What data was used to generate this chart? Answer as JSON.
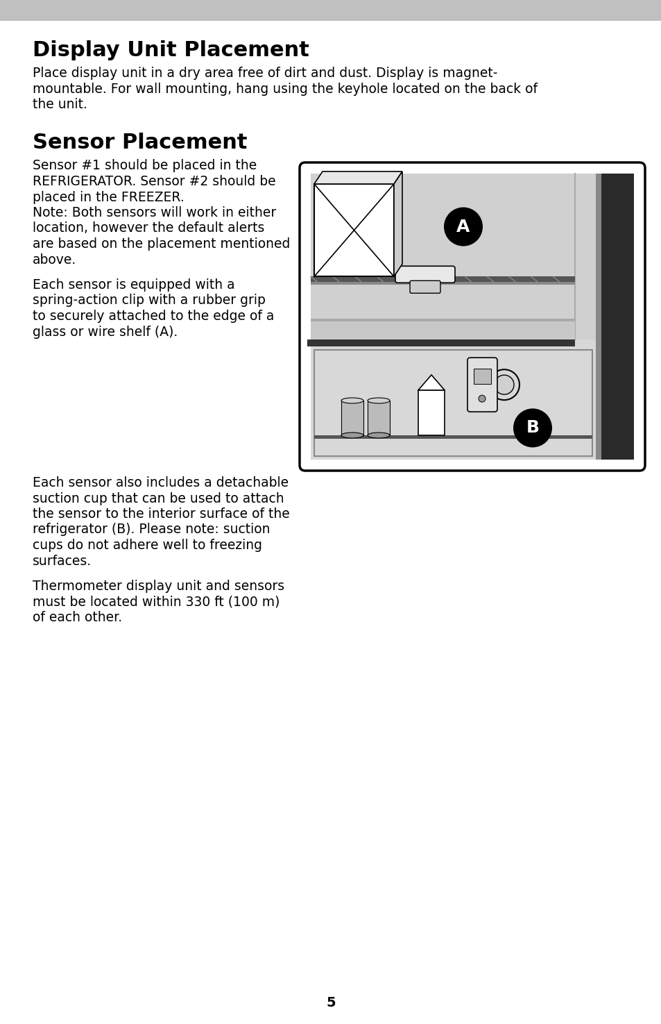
{
  "bg_color": "#ffffff",
  "header_bar_color": "#c0c0c0",
  "page_number": "5",
  "title1": "Display Unit Placement",
  "title2": "Sensor Placement",
  "body1_line1": "Place display unit in a dry area free of dirt and dust. Display is magnet-",
  "body1_line2": "mountable. For wall mounting, hang using the keyhole located on the back of",
  "body1_line3": "the unit.",
  "para1_line1": "Sensor #1 should be placed in the",
  "para1_line2": "REFRIGERATOR. Sensor #2 should be",
  "para1_line3": "placed in the FREEZER.",
  "para1_line4": "Note: Both sensors will work in either",
  "para1_line5": "location, however the default alerts",
  "para1_line6": "are based on the placement mentioned",
  "para1_line7": "above.",
  "para2_line1": "Each sensor is equipped with a",
  "para2_line2": "spring-action clip with a rubber grip",
  "para2_line3": "to securely attached to the edge of a",
  "para2_line4": "glass or wire shelf (A).",
  "para3_line1": "Each sensor also includes a detachable",
  "para3_line2": "suction cup that can be used to attach",
  "para3_line3": "the sensor to the interior surface of the",
  "para3_line4": "refrigerator (B). Please note: suction",
  "para3_line5": "cups do not adhere well to freezing",
  "para3_line6": "surfaces.",
  "para4_line1": "Thermometer display unit and sensors",
  "para4_line2": "must be located within 330 ft (100 m)",
  "para4_line3": "of each other."
}
